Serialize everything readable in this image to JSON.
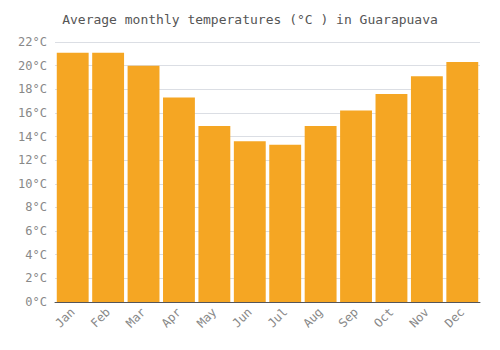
{
  "chart_data": {
    "type": "bar",
    "title": "Average monthly temperatures (°C ) in Guarapuava",
    "categories": [
      "Jan",
      "Feb",
      "Mar",
      "Apr",
      "May",
      "Jun",
      "Jul",
      "Aug",
      "Sep",
      "Oct",
      "Nov",
      "Dec"
    ],
    "values": [
      21.1,
      21.1,
      20.0,
      17.3,
      14.9,
      13.6,
      13.3,
      14.9,
      16.2,
      17.6,
      19.1,
      20.3
    ],
    "color": "#F5A623",
    "ylim": [
      0,
      22
    ],
    "yticks": [
      {
        "value": 0,
        "label": "0°C"
      },
      {
        "value": 2,
        "label": "2°C"
      },
      {
        "value": 4,
        "label": "4°C"
      },
      {
        "value": 6,
        "label": "6°C"
      },
      {
        "value": 8,
        "label": "8°C"
      },
      {
        "value": 10,
        "label": "10°C"
      },
      {
        "value": 12,
        "label": "12°C"
      },
      {
        "value": 14,
        "label": "14°C"
      },
      {
        "value": 16,
        "label": "16°C"
      },
      {
        "value": 18,
        "label": "18°C"
      },
      {
        "value": 20,
        "label": "20°C"
      },
      {
        "value": 22,
        "label": "22°C"
      }
    ],
    "grid": true
  }
}
